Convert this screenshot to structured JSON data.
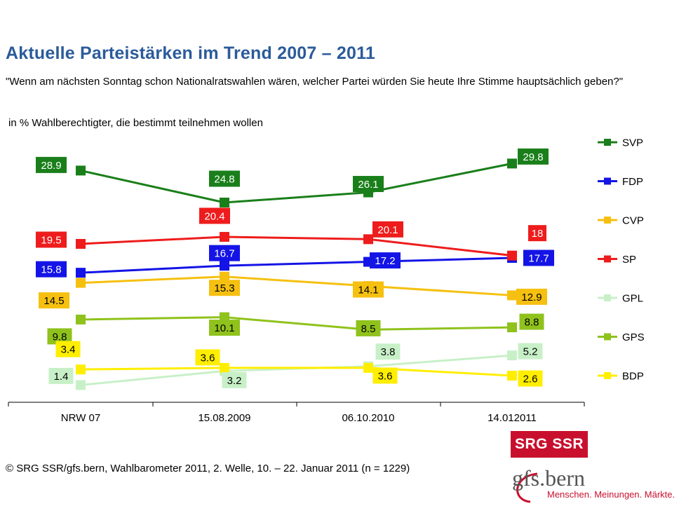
{
  "title": "Aktuelle Parteistärken im Trend 2007 – 2011",
  "question": "\"Wenn am nächsten Sonntag schon Nationalratswahlen wären, welcher Partei würden Sie heute Ihre Stimme hauptsächlich geben?\"",
  "unit_label": "in % Wahlberechtigter, die bestimmt teilnehmen wollen",
  "source": "© SRG SSR/gfs.bern, Wahlbarometer 2011, 2. Welle, 10. – 22. Januar 2011 (n = 1229)",
  "logos": {
    "srg": "SRG SSR",
    "gfs_name": "gfs.bern",
    "gfs_tagline": "Menschen. Meinungen. Märkte."
  },
  "chart_data": {
    "type": "line",
    "title": "Aktuelle Parteistärken im Trend 2007 – 2011",
    "ylabel": "in % Wahlberechtigter, die bestimmt teilnehmen wollen",
    "categories": [
      "NRW 07",
      "15.08.2009",
      "06.10.2010",
      "14.012011"
    ],
    "ylim": [
      0,
      31
    ],
    "grid": false,
    "legend_position": "right",
    "series": [
      {
        "name": "SVP",
        "color": "#1a7f1a",
        "text_color": "#ffffff",
        "values": [
          28.9,
          24.8,
          26.1,
          29.8
        ]
      },
      {
        "name": "FDP",
        "color": "#1414e6",
        "text_color": "#ffffff",
        "values": [
          15.8,
          16.7,
          17.2,
          17.7
        ]
      },
      {
        "name": "CVP",
        "color": "#f5c010",
        "text_color": "#000000",
        "values": [
          14.5,
          15.3,
          14.1,
          12.9
        ]
      },
      {
        "name": "SP",
        "color": "#ee1c1c",
        "text_color": "#ffffff",
        "values": [
          19.5,
          20.4,
          20.1,
          18.0
        ]
      },
      {
        "name": "GPL",
        "color": "#c8f0c8",
        "text_color": "#000000",
        "values": [
          1.4,
          3.2,
          3.8,
          5.2
        ]
      },
      {
        "name": "GPS",
        "color": "#8fc21c",
        "text_color": "#000000",
        "values": [
          9.8,
          10.1,
          8.5,
          8.8
        ]
      },
      {
        "name": "BDP",
        "color": "#ffee00",
        "text_color": "#000000",
        "values": [
          3.4,
          3.6,
          3.6,
          2.6
        ]
      }
    ]
  }
}
